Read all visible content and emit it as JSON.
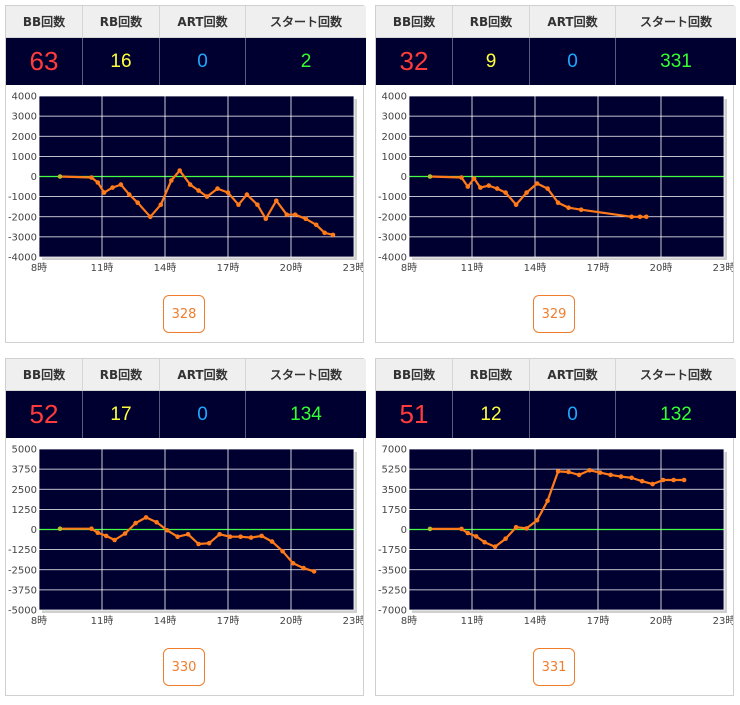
{
  "headers": {
    "bb": "BB回数",
    "rb": "RB回数",
    "art": "ART回数",
    "start": "スタート回数"
  },
  "panels": [
    {
      "bb": "63",
      "rb": "16",
      "art": "0",
      "start": "2",
      "button": "328"
    },
    {
      "bb": "32",
      "rb": "9",
      "art": "0",
      "start": "331",
      "button": "329"
    },
    {
      "bb": "52",
      "rb": "17",
      "art": "0",
      "start": "134",
      "button": "330"
    },
    {
      "bb": "51",
      "rb": "12",
      "art": "0",
      "start": "132",
      "button": "331"
    }
  ],
  "colors": {
    "plot_bg": "#000030",
    "line": "#ff7a1a",
    "zero_line": "#44ff44",
    "bb": "#ff3b3b",
    "rb": "#ffff40",
    "art": "#1ea8ff",
    "start": "#33ff33",
    "button": "#ef7d2d"
  },
  "chart_data": [
    {
      "type": "line",
      "x_ticks": [
        "8時",
        "11時",
        "14時",
        "17時",
        "20時",
        "23時"
      ],
      "xlim": [
        8,
        23
      ],
      "ylim": [
        -4000,
        4000
      ],
      "y_ticks": [
        "4000",
        "3000",
        "2000",
        "1000",
        "0",
        "-1000",
        "-2000",
        "-3000",
        "-4000"
      ],
      "grid": true,
      "x": [
        9,
        10.5,
        10.8,
        11.1,
        11.5,
        11.9,
        12.3,
        12.7,
        13.3,
        13.8,
        14.3,
        14.7,
        15.2,
        15.6,
        16,
        16.5,
        17,
        17.5,
        17.9,
        18.4,
        18.8,
        19.3,
        19.8,
        20.2,
        20.7,
        21.2,
        21.6,
        22
      ],
      "y": [
        0,
        -50,
        -300,
        -800,
        -550,
        -400,
        -900,
        -1300,
        -2000,
        -1400,
        -200,
        300,
        -400,
        -700,
        -1000,
        -600,
        -800,
        -1400,
        -900,
        -1400,
        -2100,
        -1200,
        -1900,
        -1900,
        -2100,
        -2400,
        -2800,
        -2900
      ]
    },
    {
      "type": "line",
      "x_ticks": [
        "8時",
        "11時",
        "14時",
        "17時",
        "20時",
        "23時"
      ],
      "xlim": [
        8,
        23
      ],
      "ylim": [
        -4000,
        4000
      ],
      "y_ticks": [
        "4000",
        "3000",
        "2000",
        "1000",
        "0",
        "-1000",
        "-2000",
        "-3000",
        "-4000"
      ],
      "grid": true,
      "x": [
        9,
        10.5,
        10.8,
        11.1,
        11.4,
        11.8,
        12.2,
        12.6,
        13.1,
        13.6,
        14.1,
        14.6,
        15.1,
        15.6,
        16.2,
        18.6,
        19,
        19.3
      ],
      "y": [
        0,
        -50,
        -500,
        -100,
        -550,
        -450,
        -600,
        -800,
        -1400,
        -800,
        -350,
        -600,
        -1300,
        -1550,
        -1650,
        -2000,
        -2000,
        -2000
      ]
    },
    {
      "type": "line",
      "x_ticks": [
        "8時",
        "11時",
        "14時",
        "17時",
        "20時",
        "23時"
      ],
      "xlim": [
        8,
        23
      ],
      "ylim": [
        -5000,
        5000
      ],
      "y_ticks": [
        "5000",
        "3750",
        "2500",
        "1250",
        "0",
        "-1250",
        "-2500",
        "-3750",
        "-5000"
      ],
      "grid": true,
      "x": [
        9,
        10.5,
        10.8,
        11.2,
        11.6,
        12.1,
        12.6,
        13.1,
        13.6,
        14.1,
        14.6,
        15.1,
        15.6,
        16.1,
        16.6,
        17.1,
        17.6,
        18.1,
        18.6,
        19.1,
        19.6,
        20.1,
        20.6,
        21.1
      ],
      "y": [
        50,
        50,
        -200,
        -400,
        -650,
        -250,
        400,
        750,
        450,
        -50,
        -450,
        -300,
        -900,
        -850,
        -300,
        -450,
        -450,
        -500,
        -400,
        -750,
        -1350,
        -2100,
        -2400,
        -2600
      ]
    },
    {
      "type": "line",
      "x_ticks": [
        "8時",
        "11時",
        "14時",
        "17時",
        "20時",
        "23時"
      ],
      "xlim": [
        8,
        23
      ],
      "ylim": [
        -7000,
        7000
      ],
      "y_ticks": [
        "7000",
        "5250",
        "3500",
        "1750",
        "0",
        "-1750",
        "-3500",
        "-5250",
        "-7000"
      ],
      "grid": true,
      "x": [
        9,
        10.5,
        10.8,
        11.2,
        11.6,
        12.1,
        12.6,
        13.1,
        13.6,
        14.1,
        14.6,
        15.1,
        15.6,
        16.1,
        16.6,
        17.1,
        17.6,
        18.1,
        18.6,
        19.1,
        19.6,
        20.1,
        20.6,
        21.1
      ],
      "y": [
        50,
        50,
        -300,
        -600,
        -1100,
        -1500,
        -800,
        200,
        100,
        800,
        2500,
        5050,
        5000,
        4750,
        5150,
        4950,
        4750,
        4600,
        4500,
        4200,
        3950,
        4300,
        4300,
        4300
      ]
    }
  ]
}
